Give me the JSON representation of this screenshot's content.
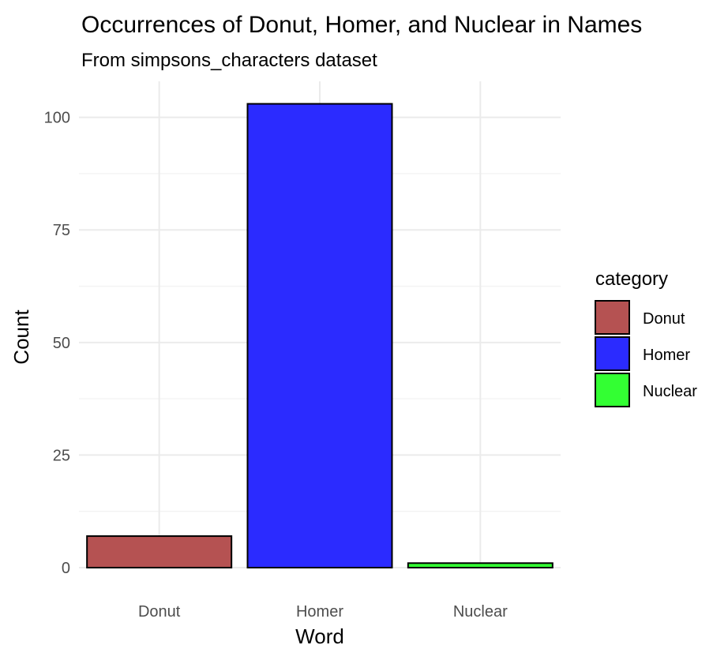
{
  "chart_data": {
    "type": "bar",
    "title": "Occurrences of Donut, Homer, and Nuclear in Names",
    "subtitle": "From simpsons_characters dataset",
    "xlabel": "Word",
    "ylabel": "Count",
    "categories": [
      "Donut",
      "Homer",
      "Nuclear"
    ],
    "values": [
      7,
      103,
      1
    ],
    "colors": [
      "#b55252",
      "#2b2bff",
      "#33ff33"
    ],
    "ylim": [
      0,
      103
    ],
    "yticks": [
      0,
      25,
      50,
      75,
      100
    ],
    "grid": true,
    "legend": {
      "title": "category",
      "position": "right",
      "entries": [
        "Donut",
        "Homer",
        "Nuclear"
      ]
    }
  }
}
